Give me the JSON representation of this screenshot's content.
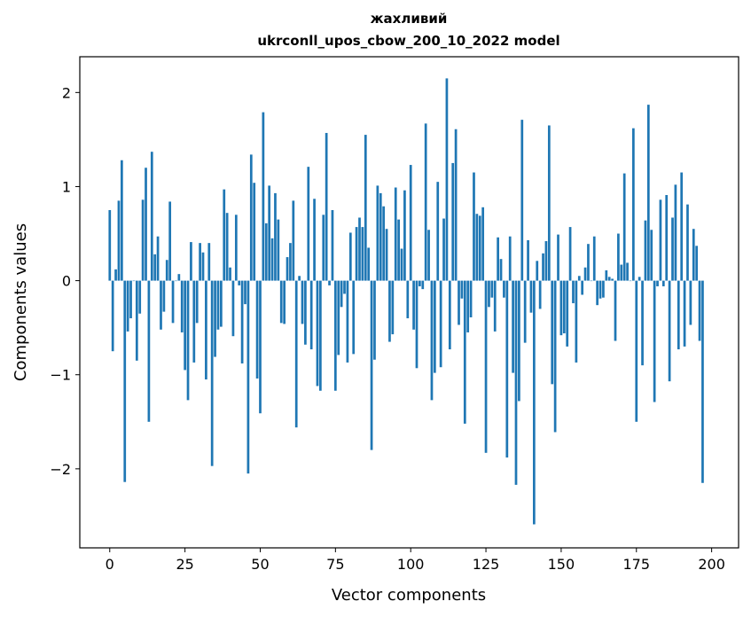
{
  "chart_data": {
    "type": "bar",
    "title_line1": "жахливий",
    "title_line2": "ukrconll_upos_cbow_200_10_2022 model",
    "xlabel": "Vector components",
    "ylabel": "Components values",
    "xlim": [
      -9.95,
      208.95
    ],
    "ylim": [
      -2.84,
      2.38
    ],
    "xticks": [
      0,
      25,
      50,
      75,
      100,
      125,
      150,
      175,
      200
    ],
    "yticks": [
      -2,
      -1,
      0,
      1,
      2
    ],
    "ytick_labels": [
      "−2",
      "−1",
      "0",
      "1",
      "2"
    ],
    "bar_color": "#1f77b4",
    "grid": false,
    "legend": "none",
    "values": [
      0.75,
      -0.75,
      0.12,
      0.85,
      1.28,
      -2.14,
      -0.54,
      -0.4,
      0.0,
      -0.85,
      -0.35,
      0.86,
      1.2,
      -1.5,
      1.37,
      0.28,
      0.47,
      -0.52,
      -0.33,
      0.22,
      0.84,
      -0.45,
      0.0,
      0.07,
      -0.55,
      -0.95,
      -1.27,
      0.41,
      -0.87,
      -0.45,
      0.4,
      0.3,
      -1.05,
      0.4,
      -1.97,
      -0.81,
      -0.52,
      -0.49,
      0.97,
      0.72,
      0.14,
      -0.59,
      0.7,
      -0.05,
      -0.88,
      -0.25,
      -2.05,
      1.34,
      1.04,
      -1.04,
      -1.41,
      1.79,
      0.61,
      1.01,
      0.45,
      0.93,
      0.65,
      -0.45,
      -0.46,
      0.25,
      0.4,
      0.85,
      -1.56,
      0.05,
      -0.46,
      -0.68,
      1.21,
      -0.73,
      0.87,
      -1.12,
      -1.17,
      0.7,
      1.57,
      -0.05,
      0.75,
      -1.17,
      -0.79,
      -0.28,
      -0.14,
      -0.87,
      0.51,
      -0.78,
      0.57,
      0.67,
      0.57,
      1.55,
      0.35,
      -1.8,
      -0.84,
      1.01,
      0.93,
      0.79,
      0.55,
      -0.65,
      -0.57,
      0.99,
      0.65,
      0.34,
      0.96,
      -0.4,
      1.23,
      -0.52,
      -0.93,
      -0.06,
      -0.09,
      1.67,
      0.54,
      -1.27,
      -0.98,
      1.05,
      -0.92,
      0.66,
      2.15,
      -0.73,
      1.25,
      1.61,
      -0.47,
      -0.19,
      -1.52,
      -0.55,
      -0.39,
      1.15,
      0.71,
      0.69,
      0.78,
      -1.83,
      -0.28,
      -0.18,
      -0.54,
      0.46,
      0.23,
      -0.18,
      -1.88,
      0.47,
      -0.98,
      -2.17,
      -1.28,
      1.71,
      -0.66,
      0.43,
      -0.34,
      -2.59,
      0.21,
      -0.3,
      0.29,
      0.42,
      1.65,
      -1.1,
      -1.61,
      0.49,
      -0.58,
      -0.56,
      -0.7,
      0.57,
      -0.24,
      -0.87,
      0.05,
      -0.15,
      0.14,
      0.39,
      0.0,
      0.47,
      -0.26,
      -0.19,
      -0.18,
      0.11,
      0.04,
      0.02,
      -0.64,
      0.5,
      0.17,
      1.14,
      0.19,
      0.0,
      1.62,
      -1.5,
      0.04,
      -0.9,
      0.64,
      1.87,
      0.54,
      -1.29,
      -0.06,
      0.86,
      -0.06,
      0.91,
      -1.07,
      0.67,
      1.02,
      -0.73,
      1.15,
      -0.7,
      0.81,
      -0.47,
      0.55,
      0.37,
      -0.64,
      -2.15
    ]
  }
}
